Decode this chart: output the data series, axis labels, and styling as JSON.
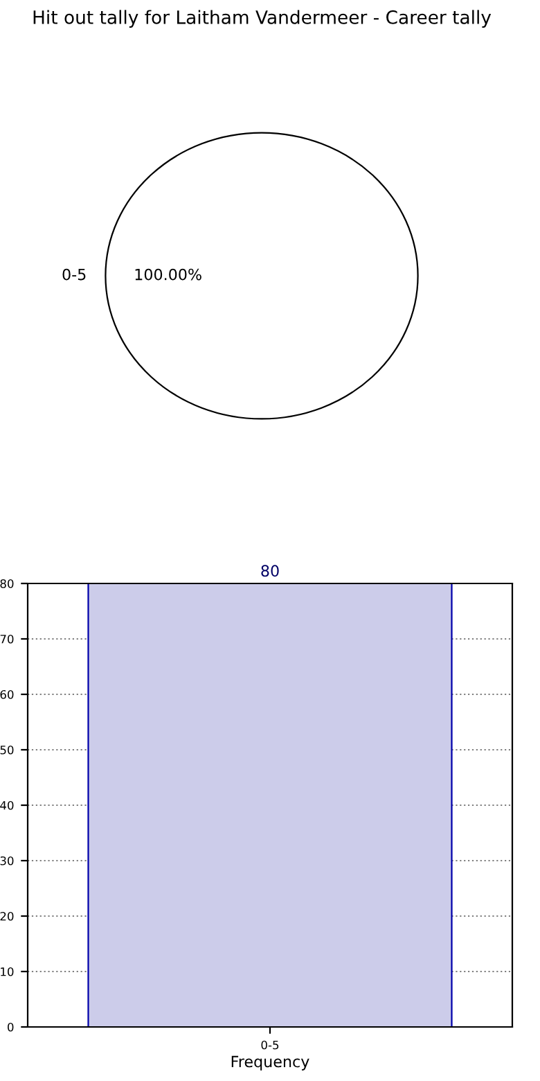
{
  "chart_data": [
    {
      "type": "pie",
      "title": "Hit out tally for Laitham Vandermeer - Career tally",
      "categories": [
        "0-5"
      ],
      "values": [
        100
      ],
      "colors": [
        "#ffffff"
      ],
      "value_labels": [
        "100.00%"
      ]
    },
    {
      "type": "bar",
      "categories": [
        "0-5"
      ],
      "values": [
        80
      ],
      "color": "#ccccea",
      "xlabel": "Frequency",
      "ylim": [
        0,
        80
      ],
      "yticks": [
        0,
        10,
        20,
        30,
        40,
        50,
        60,
        70,
        80
      ],
      "grid": true,
      "data_labels": true
    }
  ]
}
